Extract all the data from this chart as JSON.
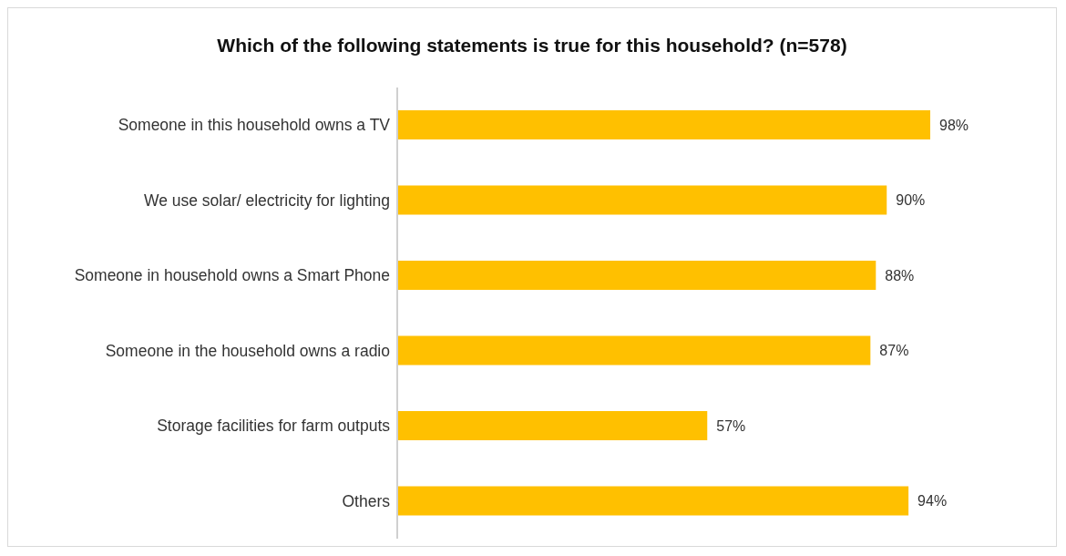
{
  "chart_data": {
    "type": "bar",
    "orientation": "horizontal",
    "title": "Which of the following statements is true for this household? (n=578)",
    "categories": [
      "Someone in this household owns a TV",
      "We use solar/ electricity for lighting",
      "Someone in household owns a Smart Phone",
      "Someone in the household owns a radio",
      "Storage facilities for farm outputs",
      "Others"
    ],
    "values": [
      98,
      90,
      88,
      87,
      57,
      94
    ],
    "value_labels": [
      "98%",
      "90%",
      "88%",
      "87%",
      "57%",
      "94%"
    ],
    "color": "#ffc000",
    "grid": false,
    "legend": false
  }
}
